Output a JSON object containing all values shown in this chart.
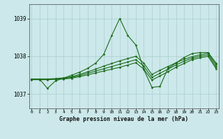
{
  "title": "Graphe pression niveau de la mer (hPa)",
  "background_color": "#cce8ea",
  "grid_color": "#aacdd0",
  "line_color": "#1a6b1a",
  "xlim": [
    -0.3,
    23.3
  ],
  "ylim": [
    1036.62,
    1039.38
  ],
  "yticks": [
    1037,
    1038,
    1039
  ],
  "xticks": [
    0,
    1,
    2,
    3,
    4,
    5,
    6,
    7,
    8,
    9,
    10,
    11,
    12,
    13,
    14,
    15,
    16,
    17,
    18,
    19,
    20,
    21,
    22,
    23
  ],
  "series": [
    {
      "x": [
        0,
        1,
        2,
        3,
        4,
        5,
        6,
        7,
        8,
        9,
        10,
        11,
        12,
        13,
        14,
        15,
        16,
        17,
        18,
        19,
        20,
        21,
        22,
        23
      ],
      "y": [
        1037.4,
        1037.4,
        1037.15,
        1037.35,
        1037.42,
        1037.5,
        1037.58,
        1037.68,
        1037.82,
        1038.05,
        1038.55,
        1039.0,
        1038.55,
        1038.3,
        1037.65,
        1037.18,
        1037.2,
        1037.68,
        1037.82,
        1037.97,
        1038.07,
        1038.1,
        1038.1,
        1037.82
      ]
    },
    {
      "x": [
        0,
        1,
        2,
        3,
        4,
        5,
        6,
        7,
        8,
        9,
        10,
        11,
        12,
        13,
        14,
        15,
        16,
        17,
        18,
        19,
        20,
        21,
        22,
        23
      ],
      "y": [
        1037.4,
        1037.4,
        1037.4,
        1037.41,
        1037.43,
        1037.46,
        1037.52,
        1037.59,
        1037.66,
        1037.74,
        1037.81,
        1037.88,
        1037.94,
        1038.0,
        1037.82,
        1037.52,
        1037.63,
        1037.73,
        1037.83,
        1037.92,
        1037.99,
        1038.04,
        1038.08,
        1037.78
      ]
    },
    {
      "x": [
        0,
        1,
        2,
        3,
        4,
        5,
        6,
        7,
        8,
        9,
        10,
        11,
        12,
        13,
        14,
        15,
        16,
        17,
        18,
        19,
        20,
        21,
        22,
        23
      ],
      "y": [
        1037.39,
        1037.39,
        1037.39,
        1037.4,
        1037.41,
        1037.44,
        1037.49,
        1037.55,
        1037.61,
        1037.67,
        1037.73,
        1037.79,
        1037.85,
        1037.91,
        1037.74,
        1037.44,
        1037.55,
        1037.66,
        1037.77,
        1037.87,
        1037.95,
        1038.0,
        1038.04,
        1037.72
      ]
    },
    {
      "x": [
        0,
        1,
        2,
        3,
        4,
        5,
        6,
        7,
        8,
        9,
        10,
        11,
        12,
        13,
        14,
        15,
        16,
        17,
        18,
        19,
        20,
        21,
        22,
        23
      ],
      "y": [
        1037.38,
        1037.38,
        1037.38,
        1037.39,
        1037.4,
        1037.42,
        1037.46,
        1037.51,
        1037.56,
        1037.61,
        1037.66,
        1037.71,
        1037.77,
        1037.83,
        1037.66,
        1037.37,
        1037.48,
        1037.59,
        1037.71,
        1037.81,
        1037.91,
        1037.96,
        1038.0,
        1037.67
      ]
    }
  ]
}
